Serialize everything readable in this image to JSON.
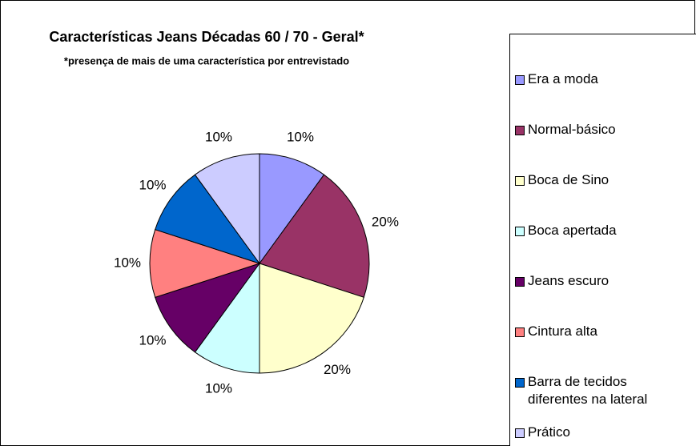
{
  "chart_data": {
    "type": "pie",
    "title": "Características Jeans Décadas 60 / 70 - Geral*",
    "subtitle": "*presença de mais de uma característica por entrevistado",
    "categories": [
      "Era a moda",
      "Normal-básico",
      "Boca de Sino",
      "Boca apertada",
      "Jeans escuro",
      "Cintura alta",
      "Barra de tecidos diferentes na lateral",
      "Prático"
    ],
    "values": [
      10,
      20,
      20,
      10,
      10,
      10,
      10,
      10
    ],
    "value_labels": [
      "10%",
      "20%",
      "20%",
      "10%",
      "10%",
      "10%",
      "10%",
      "10%"
    ],
    "colors": [
      "#9999ff",
      "#993366",
      "#ffffcc",
      "#ccffff",
      "#660066",
      "#ff8080",
      "#0066cc",
      "#ccccff"
    ],
    "legend": "right"
  }
}
